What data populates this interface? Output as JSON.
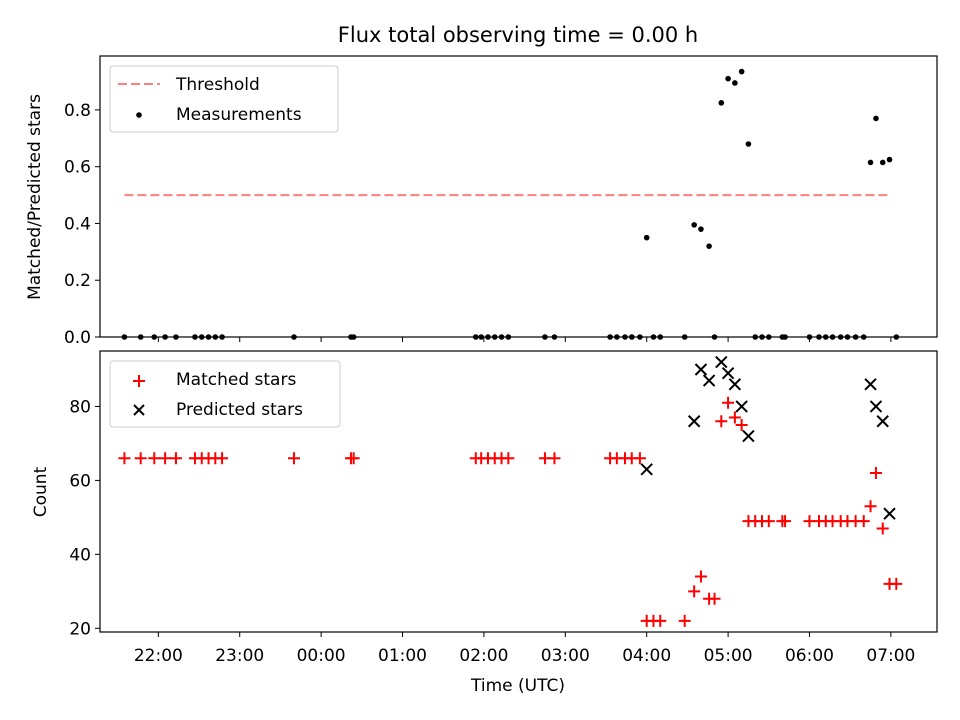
{
  "chart_data": [
    {
      "type": "scatter",
      "title": "Flux total observing time = 0.00 h",
      "xlabel": "",
      "ylabel": "Matched/Predicted stars",
      "ylim": [
        0,
        1.0
      ],
      "yticks": [
        "0.0",
        "0.2",
        "0.4",
        "0.6",
        "0.8"
      ],
      "legend": {
        "placement": "top-left",
        "entries": [
          "Threshold",
          "Measurements"
        ]
      },
      "threshold": {
        "name": "Threshold",
        "value": 0.5,
        "x_start": "21:35",
        "x_end": "07:00",
        "color": "#ff7f7f"
      },
      "series": [
        {
          "name": "Measurements",
          "color": "#000000",
          "points": [
            [
              "21:35",
              0
            ],
            [
              "21:47",
              0
            ],
            [
              "21:57",
              0
            ],
            [
              "22:05",
              0
            ],
            [
              "22:13",
              0
            ],
            [
              "22:27",
              0
            ],
            [
              "22:32",
              0
            ],
            [
              "22:37",
              0
            ],
            [
              "22:42",
              0
            ],
            [
              "22:47",
              0
            ],
            [
              "23:40",
              0
            ],
            [
              "00:22",
              0
            ],
            [
              "00:24",
              0
            ],
            [
              "01:54",
              0
            ],
            [
              "01:58",
              0
            ],
            [
              "02:03",
              0
            ],
            [
              "02:08",
              0
            ],
            [
              "02:13",
              0
            ],
            [
              "02:18",
              0
            ],
            [
              "02:45",
              0
            ],
            [
              "02:52",
              0
            ],
            [
              "03:33",
              0
            ],
            [
              "03:38",
              0
            ],
            [
              "03:44",
              0
            ],
            [
              "03:49",
              0
            ],
            [
              "03:55",
              0
            ],
            [
              "04:00",
              0.35
            ],
            [
              "04:05",
              0
            ],
            [
              "04:10",
              0
            ],
            [
              "04:28",
              0
            ],
            [
              "04:35",
              0.395
            ],
            [
              "04:40",
              0.38
            ],
            [
              "04:46",
              0.32
            ],
            [
              "04:50",
              0
            ],
            [
              "04:55",
              0.825
            ],
            [
              "05:00",
              0.91
            ],
            [
              "05:05",
              0.895
            ],
            [
              "05:10",
              0.935
            ],
            [
              "05:15",
              0.68
            ],
            [
              "05:20",
              0
            ],
            [
              "05:25",
              0
            ],
            [
              "05:30",
              0
            ],
            [
              "05:40",
              0
            ],
            [
              "05:42",
              0
            ],
            [
              "06:00",
              0
            ],
            [
              "06:07",
              0
            ],
            [
              "06:12",
              0
            ],
            [
              "06:17",
              0
            ],
            [
              "06:23",
              0
            ],
            [
              "06:28",
              0
            ],
            [
              "06:34",
              0
            ],
            [
              "06:40",
              0
            ],
            [
              "06:45",
              0.615
            ],
            [
              "06:49",
              0.77
            ],
            [
              "06:54",
              0.615
            ],
            [
              "06:59",
              0.625
            ],
            [
              "07:04",
              0
            ]
          ]
        }
      ]
    },
    {
      "type": "scatter",
      "title": "",
      "xlabel": "Time (UTC)",
      "ylabel": "Count",
      "ylim": [
        19,
        95
      ],
      "yticks": [
        "20",
        "40",
        "60",
        "80"
      ],
      "xticks": [
        "22:00",
        "23:00",
        "00:00",
        "01:00",
        "02:00",
        "03:00",
        "04:00",
        "05:00",
        "06:00",
        "07:00"
      ],
      "legend": {
        "placement": "top-left",
        "entries": [
          "Matched stars",
          "Predicted stars"
        ]
      },
      "series": [
        {
          "name": "Matched stars",
          "marker": "+",
          "color": "#ff0000",
          "points": [
            [
              "21:35",
              66
            ],
            [
              "21:47",
              66
            ],
            [
              "21:57",
              66
            ],
            [
              "22:05",
              66
            ],
            [
              "22:13",
              66
            ],
            [
              "22:27",
              66
            ],
            [
              "22:32",
              66
            ],
            [
              "22:37",
              66
            ],
            [
              "22:42",
              66
            ],
            [
              "22:47",
              66
            ],
            [
              "23:40",
              66
            ],
            [
              "00:22",
              66
            ],
            [
              "00:24",
              66
            ],
            [
              "01:54",
              66
            ],
            [
              "01:58",
              66
            ],
            [
              "02:03",
              66
            ],
            [
              "02:08",
              66
            ],
            [
              "02:13",
              66
            ],
            [
              "02:18",
              66
            ],
            [
              "02:45",
              66
            ],
            [
              "02:52",
              66
            ],
            [
              "03:33",
              66
            ],
            [
              "03:38",
              66
            ],
            [
              "03:44",
              66
            ],
            [
              "03:49",
              66
            ],
            [
              "03:55",
              66
            ],
            [
              "04:00",
              22
            ],
            [
              "04:05",
              22
            ],
            [
              "04:10",
              22
            ],
            [
              "04:28",
              22
            ],
            [
              "04:35",
              30
            ],
            [
              "04:40",
              34
            ],
            [
              "04:46",
              28
            ],
            [
              "04:50",
              28
            ],
            [
              "04:55",
              76
            ],
            [
              "05:00",
              81
            ],
            [
              "05:05",
              77
            ],
            [
              "05:10",
              75
            ],
            [
              "05:15",
              49
            ],
            [
              "05:20",
              49
            ],
            [
              "05:25",
              49
            ],
            [
              "05:30",
              49
            ],
            [
              "05:40",
              49
            ],
            [
              "05:42",
              49
            ],
            [
              "06:00",
              49
            ],
            [
              "06:07",
              49
            ],
            [
              "06:12",
              49
            ],
            [
              "06:17",
              49
            ],
            [
              "06:23",
              49
            ],
            [
              "06:28",
              49
            ],
            [
              "06:34",
              49
            ],
            [
              "06:40",
              49
            ],
            [
              "06:45",
              53
            ],
            [
              "06:49",
              62
            ],
            [
              "06:54",
              47
            ],
            [
              "06:59",
              32
            ],
            [
              "07:04",
              32
            ]
          ]
        },
        {
          "name": "Predicted stars",
          "marker": "x",
          "color": "#000000",
          "points": [
            [
              "04:00",
              63
            ],
            [
              "04:35",
              76
            ],
            [
              "04:40",
              90
            ],
            [
              "04:46",
              87
            ],
            [
              "04:55",
              92
            ],
            [
              "05:00",
              89
            ],
            [
              "05:05",
              86
            ],
            [
              "05:10",
              80
            ],
            [
              "05:15",
              72
            ],
            [
              "06:45",
              86
            ],
            [
              "06:49",
              80
            ],
            [
              "06:54",
              76
            ],
            [
              "06:59",
              51
            ]
          ]
        }
      ]
    }
  ]
}
